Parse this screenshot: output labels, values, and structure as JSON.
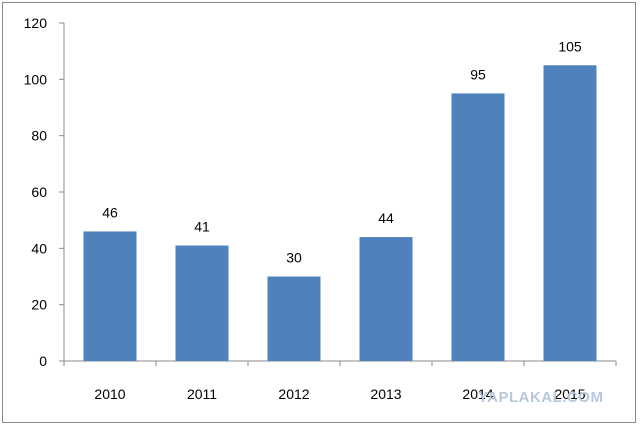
{
  "chart_data": {
    "type": "bar",
    "categories": [
      "2010",
      "2011",
      "2012",
      "2013",
      "2014",
      "2015"
    ],
    "values": [
      46,
      41,
      30,
      44,
      95,
      105
    ],
    "data_labels": [
      "46",
      "41",
      "30",
      "44",
      "95",
      "105"
    ],
    "title": "",
    "xlabel": "",
    "ylabel": "",
    "ylim": [
      0,
      120
    ],
    "yticks": [
      0,
      20,
      40,
      60,
      80,
      100,
      120
    ],
    "grid": false,
    "legend": "none",
    "bar_color": "#4f81bd"
  },
  "watermark": "YAPLAKAL.COM"
}
